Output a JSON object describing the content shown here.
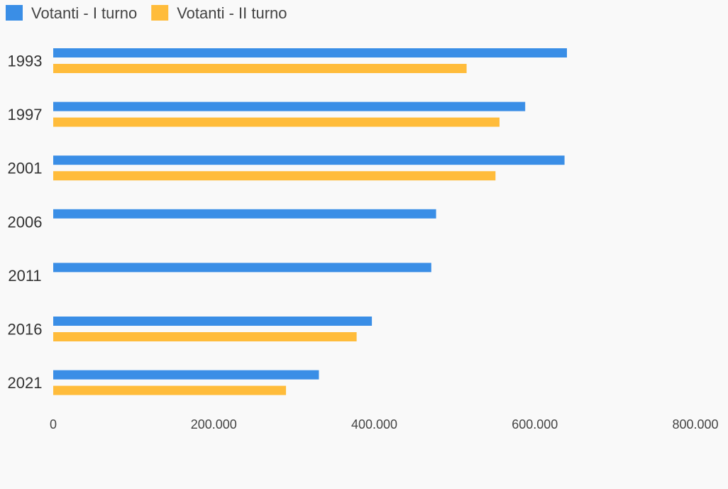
{
  "chart_data": {
    "type": "bar",
    "orientation": "horizontal",
    "categories": [
      "1993",
      "1997",
      "2001",
      "2006",
      "2011",
      "2016",
      "2021"
    ],
    "series": [
      {
        "name": "Votanti - I turno",
        "color": "#3a8ee6",
        "values": [
          640000,
          588000,
          637000,
          477000,
          471000,
          397000,
          331000
        ]
      },
      {
        "name": "Votanti - II turno",
        "color": "#ffbc3b",
        "values": [
          515000,
          556000,
          551000,
          null,
          null,
          378000,
          290000
        ]
      }
    ],
    "xlim": [
      0,
      800000
    ],
    "xticks": [
      0,
      200000,
      400000,
      600000,
      800000
    ],
    "xtick_labels": [
      "0",
      "200.000",
      "400.000",
      "600.000",
      "800.000"
    ],
    "legend_position": "top-left",
    "grid": false,
    "title": "",
    "xlabel": "",
    "ylabel": ""
  }
}
